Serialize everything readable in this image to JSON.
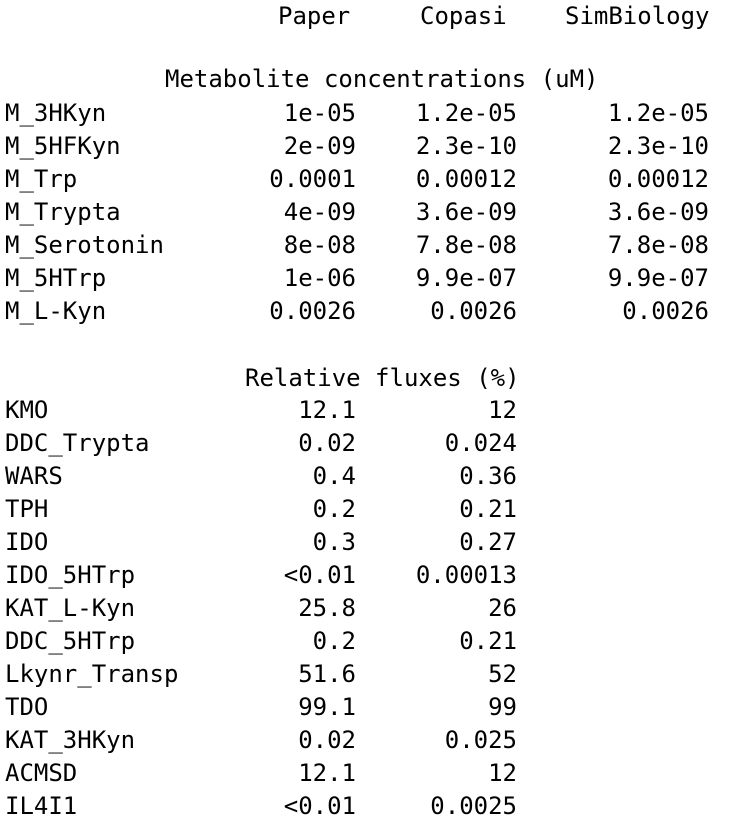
{
  "columns": {
    "paper": "Paper",
    "copasi": "Copasi",
    "simbiology": "SimBiology"
  },
  "metabolites": {
    "title": "Metabolite concentrations (uM)",
    "rows": [
      {
        "name": "M_3HKyn",
        "paper": "1e-05",
        "copasi": "1.2e-05",
        "simbiology": "1.2e-05"
      },
      {
        "name": "M_5HFKyn",
        "paper": "2e-09",
        "copasi": "2.3e-10",
        "simbiology": "2.3e-10"
      },
      {
        "name": "M_Trp",
        "paper": "0.0001",
        "copasi": "0.00012",
        "simbiology": "0.00012"
      },
      {
        "name": "M_Trypta",
        "paper": "4e-09",
        "copasi": "3.6e-09",
        "simbiology": "3.6e-09"
      },
      {
        "name": "M_Serotonin",
        "paper": "8e-08",
        "copasi": "7.8e-08",
        "simbiology": "7.8e-08"
      },
      {
        "name": "M_5HTrp",
        "paper": "1e-06",
        "copasi": "9.9e-07",
        "simbiology": "9.9e-07"
      },
      {
        "name": "M_L-Kyn",
        "paper": "0.0026",
        "copasi": "0.0026",
        "simbiology": "0.0026"
      }
    ]
  },
  "fluxes": {
    "title": "Relative fluxes (%)",
    "rows": [
      {
        "name": "KMO",
        "paper": "12.1",
        "copasi": "12"
      },
      {
        "name": "DDC_Trypta",
        "paper": "0.02",
        "copasi": "0.024"
      },
      {
        "name": "WARS",
        "paper": "0.4",
        "copasi": "0.36"
      },
      {
        "name": "TPH",
        "paper": "0.2",
        "copasi": "0.21"
      },
      {
        "name": "IDO",
        "paper": "0.3",
        "copasi": "0.27"
      },
      {
        "name": "IDO_5HTrp",
        "paper": "<0.01",
        "copasi": "0.00013"
      },
      {
        "name": "KAT_L-Kyn",
        "paper": "25.8",
        "copasi": "26"
      },
      {
        "name": "DDC_5HTrp",
        "paper": "0.2",
        "copasi": "0.21"
      },
      {
        "name": "Lkynr_Transp",
        "paper": "51.6",
        "copasi": "52"
      },
      {
        "name": "TDO",
        "paper": "99.1",
        "copasi": "99"
      },
      {
        "name": "KAT_3HKyn",
        "paper": "0.02",
        "copasi": "0.025"
      },
      {
        "name": "ACMSD",
        "paper": "12.1",
        "copasi": "12"
      },
      {
        "name": "IL4I1",
        "paper": "<0.01",
        "copasi": "0.0025"
      }
    ]
  }
}
